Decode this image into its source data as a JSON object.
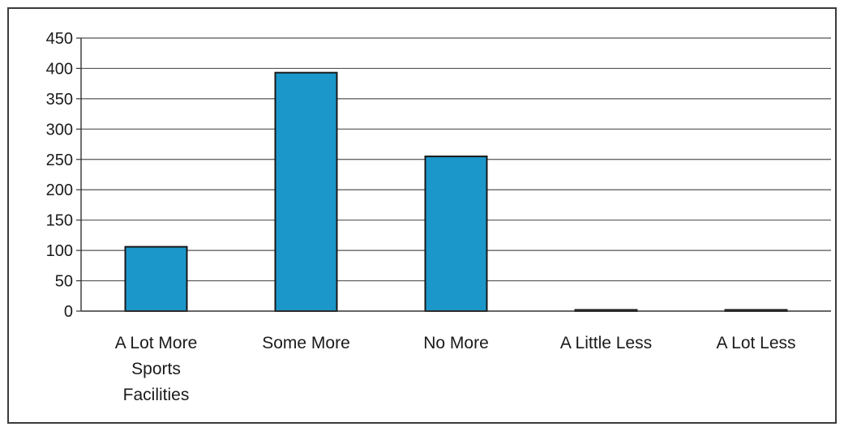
{
  "chart_data": {
    "type": "bar",
    "categories": [
      [
        "A Lot More",
        "Sports",
        "Facilities"
      ],
      [
        "Some More"
      ],
      [
        "No More"
      ],
      [
        "A Little Less"
      ],
      [
        "A Lot Less"
      ]
    ],
    "values": [
      106,
      393,
      255,
      2,
      1
    ],
    "ylim": [
      0,
      450
    ],
    "yticks": [
      0,
      50,
      100,
      150,
      200,
      250,
      300,
      350,
      400,
      450
    ],
    "bar_color": "#1b97c9",
    "bar_edge_color": "#1a1a1a",
    "grid": true
  }
}
